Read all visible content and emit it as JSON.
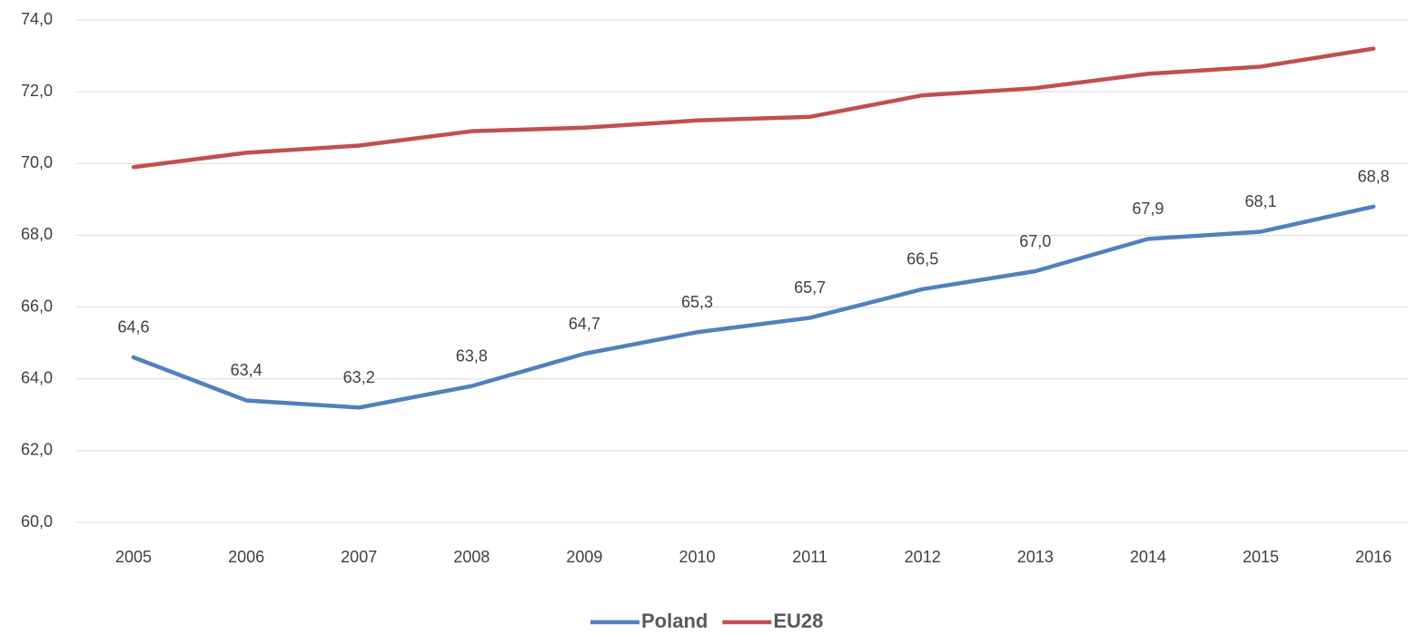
{
  "chart_data": {
    "type": "line",
    "categories": [
      "2005",
      "2006",
      "2007",
      "2008",
      "2009",
      "2010",
      "2011",
      "2012",
      "2013",
      "2014",
      "2015",
      "2016"
    ],
    "series": [
      {
        "name": "Poland",
        "color": "#4f81bd",
        "values": [
          64.6,
          63.4,
          63.2,
          63.8,
          64.7,
          65.3,
          65.7,
          66.5,
          67.0,
          67.9,
          68.1,
          68.8
        ],
        "value_labels": [
          "64,6",
          "63,4",
          "63,2",
          "63,8",
          "64,7",
          "65,3",
          "65,7",
          "66,5",
          "67,0",
          "67,9",
          "68,1",
          "68,8"
        ]
      },
      {
        "name": "EU28",
        "color": "#c0504d",
        "values": [
          69.9,
          70.3,
          70.5,
          70.9,
          71.0,
          71.2,
          71.3,
          71.9,
          72.1,
          72.5,
          72.7,
          73.2
        ]
      }
    ],
    "ylim": [
      60,
      74
    ],
    "yticks": [
      {
        "value": 60,
        "label": "60,0"
      },
      {
        "value": 62,
        "label": "62,0"
      },
      {
        "value": 64,
        "label": "64,0"
      },
      {
        "value": 66,
        "label": "66,0"
      },
      {
        "value": 68,
        "label": "68,0"
      },
      {
        "value": 70,
        "label": "70,0"
      },
      {
        "value": 72,
        "label": "72,0"
      },
      {
        "value": 74,
        "label": "74,0"
      }
    ],
    "grid": true,
    "legend": "bottom"
  }
}
